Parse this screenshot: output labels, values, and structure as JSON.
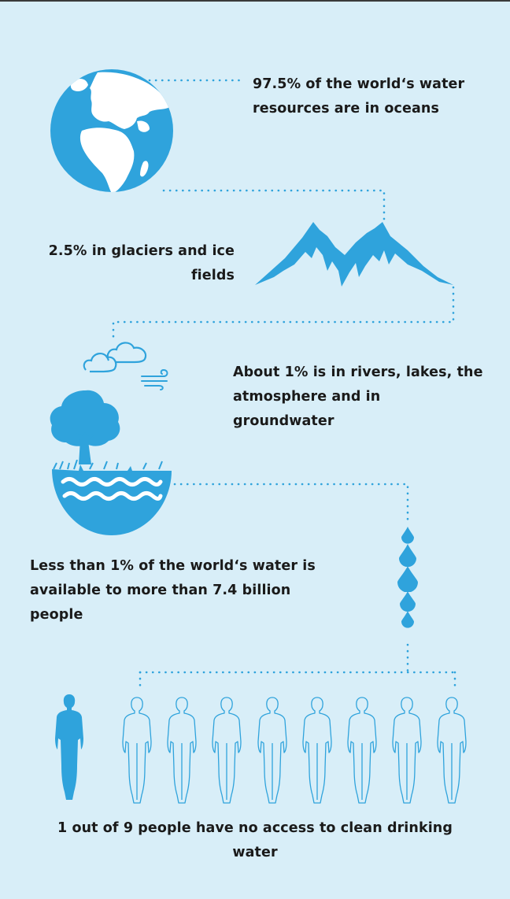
{
  "statements": {
    "oceans": "97.5% of the world‘s water resources are in oceans",
    "glaciers": "2.5% in glaciers and ice fields",
    "rivers": "About 1% is in rivers, lakes, the atmosphere and in groundwater",
    "available": "Less than 1% of the world‘s water is available to more than 7.4 billion people",
    "access": "1 out of 9 people have no access to clean drinking water"
  },
  "people": {
    "total": 9,
    "without_access": 1
  },
  "colors": {
    "background": "#d8eef8",
    "accent": "#2fa3dc",
    "text": "#1a1a1a"
  },
  "icons": [
    "globe-icon",
    "mountain-icon",
    "cloud-icon",
    "wind-icon",
    "tree-icon",
    "water-bowl-icon",
    "water-drop-icon",
    "person-icon"
  ]
}
